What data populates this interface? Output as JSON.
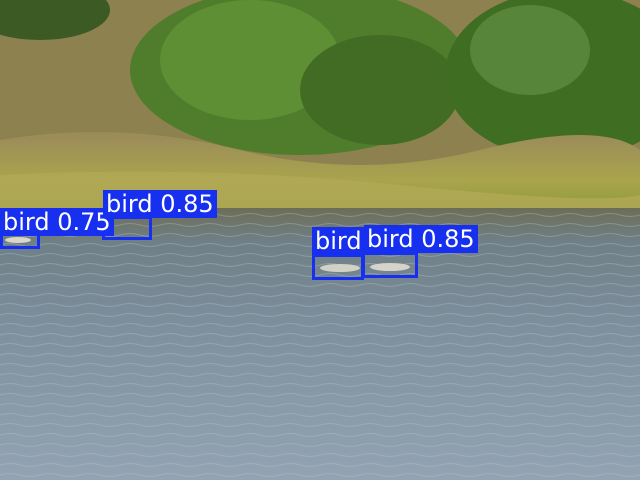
{
  "detections": [
    {
      "class_label": "bird",
      "confidence": "0.75"
    },
    {
      "class_label": "bird",
      "confidence": "0.85"
    },
    {
      "class_label": "bird",
      "confidence": ""
    },
    {
      "class_label": "bird",
      "confidence": "0.85"
    }
  ],
  "colors": {
    "box": "#1730f0",
    "label_text": "#ffffff",
    "water": "#7f8f9c",
    "shrub": "#4d7a2a",
    "grass": "#a7a24a"
  }
}
